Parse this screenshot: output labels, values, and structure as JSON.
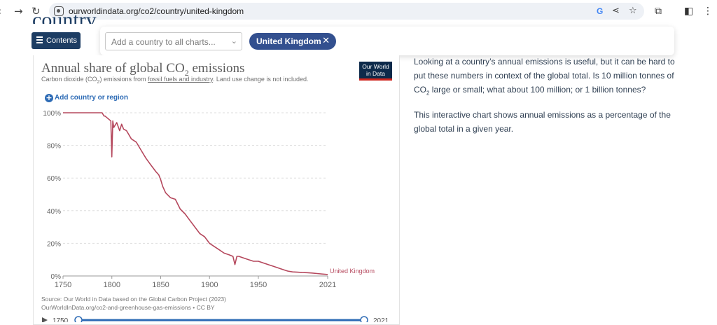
{
  "browser": {
    "url": "ourworldindata.org/co2/country/united-kingdom"
  },
  "page": {
    "heading": "country",
    "contents_label": "Contents"
  },
  "country_selector": {
    "placeholder": "Add a country to all charts...",
    "selected": "United Kingdom"
  },
  "chart": {
    "logo_line1": "Our World",
    "logo_line2": "in Data",
    "add_country_label": "Add country or region",
    "source_line1": "Source: Our World in Data based on the Global Carbon Project (2023)",
    "source_line2": "OurWorldInData.org/co2-and-greenhouse-gas-emissions • CC BY",
    "timeline_start": "1750",
    "timeline_end": "2021"
  },
  "chart_data": {
    "type": "line",
    "title": "Annual share of global CO2 emissions",
    "subtitle": "Carbon dioxide (CO2) emissions from fossil fuels and industry. Land use change is not included.",
    "xlim": [
      1750,
      2021
    ],
    "ylim": [
      0,
      100
    ],
    "x_ticks": [
      "1750",
      "1800",
      "1850",
      "1900",
      "1950",
      "2021"
    ],
    "y_ticks": [
      "0%",
      "20%",
      "40%",
      "60%",
      "80%",
      "100%"
    ],
    "grid": true,
    "series": [
      {
        "name": "United Kingdom",
        "color": "#b5485d",
        "x": [
          1750,
          1775,
          1790,
          1792,
          1793,
          1799,
          1800,
          1801,
          1802,
          1805,
          1808,
          1810,
          1812,
          1815,
          1820,
          1825,
          1830,
          1835,
          1840,
          1845,
          1848,
          1850,
          1852,
          1855,
          1860,
          1865,
          1870,
          1875,
          1880,
          1885,
          1890,
          1895,
          1900,
          1905,
          1910,
          1915,
          1920,
          1924,
          1926,
          1928,
          1930,
          1935,
          1940,
          1945,
          1950,
          1955,
          1960,
          1965,
          1970,
          1975,
          1980,
          1985,
          1990,
          1995,
          2000,
          2005,
          2010,
          2015,
          2021
        ],
        "y": [
          100,
          100,
          100,
          98,
          98,
          95,
          73,
          95,
          91,
          94,
          89,
          93,
          90,
          89,
          84,
          82,
          77,
          72,
          68,
          64,
          62,
          59,
          55,
          51,
          48,
          47,
          41,
          38,
          34,
          30,
          26,
          24,
          20,
          18,
          16,
          14,
          13,
          12,
          7,
          12,
          12,
          11,
          10,
          9,
          9,
          8,
          7,
          6,
          5,
          4,
          3,
          2.5,
          2.3,
          2.1,
          2,
          1.8,
          1.5,
          1.2,
          0.9
        ]
      }
    ]
  },
  "description": {
    "p1_a": "Looking at a country’s annual emissions is useful, but it can be hard to put these numbers in context of the global total. Is 10 million tonnes of",
    "p1_co": "CO",
    "p1_sub": "2",
    "p1_b": " large or small; what about 100 million; or 1 billion tonnes?",
    "p2": "This interactive chart shows annual emissions as a percentage of the global total in a given year."
  },
  "icons": [
    "back-arrow-icon",
    "forward-arrow-icon",
    "reload-icon",
    "site-info-icon",
    "google-icon",
    "share-icon",
    "bookmark-star-icon",
    "extensions-icon",
    "side-panel-icon",
    "menu-dots-icon",
    "hamburger-icon",
    "plus-circle-icon",
    "close-icon",
    "chevron-down-icon",
    "play-icon"
  ]
}
